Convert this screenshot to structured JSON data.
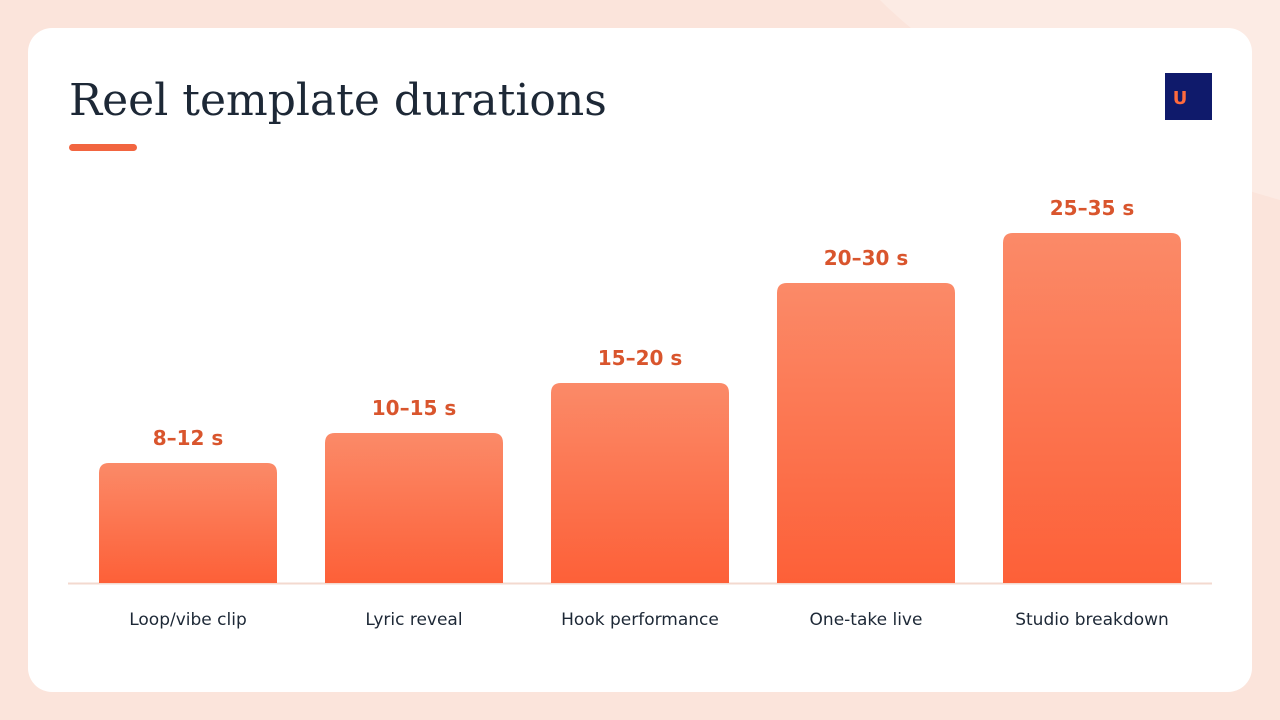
{
  "brand": {
    "logo_text": "U"
  },
  "chart_data": {
    "type": "bar",
    "title": "Reel template durations",
    "categories": [
      "Loop/vibe clip",
      "Lyric reveal",
      "Hook performance",
      "One-take live",
      "Studio breakdown"
    ],
    "values": [
      12,
      15,
      20,
      30,
      35
    ],
    "value_labels": [
      "8–12 s",
      "10–15 s",
      "15–20 s",
      "20–30 s",
      "25–35 s"
    ],
    "color": "#fd6038"
  }
}
